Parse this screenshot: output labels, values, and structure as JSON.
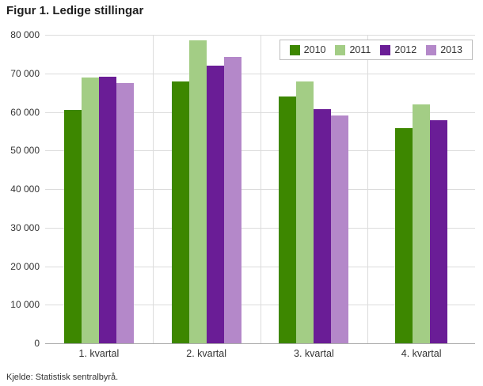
{
  "title": "Figur 1. Ledige stillingar",
  "source": "Kjelde: Statistisk sentralbyrå.",
  "chart_data": {
    "type": "bar",
    "title": "Figur 1. Ledige stillingar",
    "xlabel": "",
    "ylabel": "",
    "categories": [
      "1. kvartal",
      "2. kvartal",
      "3. kvartal",
      "4. kvartal"
    ],
    "series": [
      {
        "name": "2010",
        "color": "#3d8700",
        "values": [
          60500,
          68000,
          64000,
          55800
        ]
      },
      {
        "name": "2011",
        "color": "#a3cd85",
        "values": [
          69000,
          78500,
          68000,
          62000
        ]
      },
      {
        "name": "2012",
        "color": "#6a1d96",
        "values": [
          69200,
          72000,
          60800,
          57800
        ]
      },
      {
        "name": "2013",
        "color": "#b488c9",
        "values": [
          67500,
          74200,
          59000,
          null
        ]
      }
    ],
    "ylim": [
      0,
      80000
    ],
    "yticks": [
      {
        "v": 0,
        "label": "0"
      },
      {
        "v": 10000,
        "label": "10 000"
      },
      {
        "v": 20000,
        "label": "20 000"
      },
      {
        "v": 30000,
        "label": "30 000"
      },
      {
        "v": 40000,
        "label": "40 000"
      },
      {
        "v": 50000,
        "label": "50 000"
      },
      {
        "v": 60000,
        "label": "60 000"
      },
      {
        "v": 70000,
        "label": "70 000"
      },
      {
        "v": 80000,
        "label": "80 000"
      }
    ],
    "grid": true,
    "legend_position": "top-right"
  }
}
